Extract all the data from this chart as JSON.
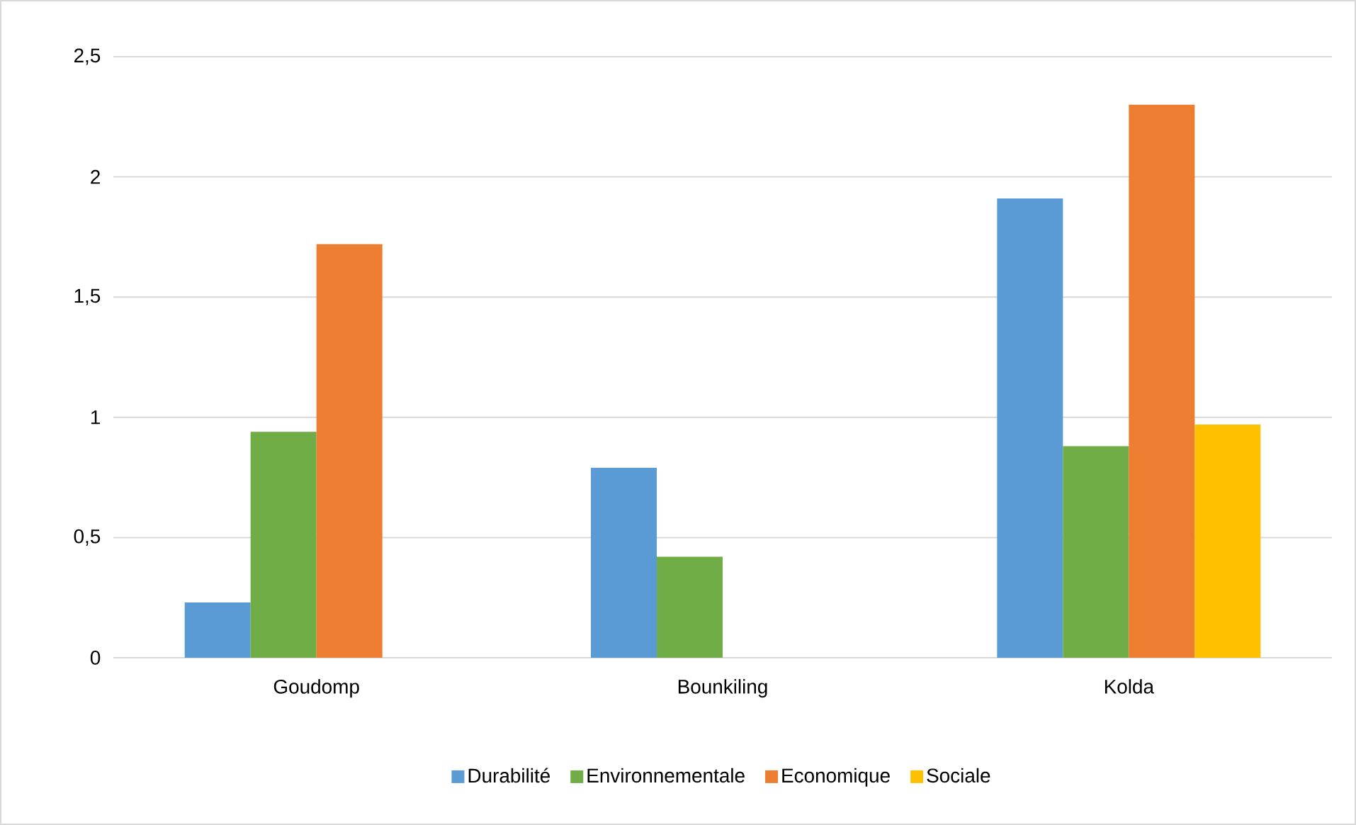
{
  "chart_data": {
    "type": "bar",
    "categories": [
      "Goudomp",
      "Bounkiling",
      "Kolda"
    ],
    "series": [
      {
        "name": "Durabilité",
        "color": "#5b9bd5",
        "values": [
          0.23,
          0.79,
          1.91
        ]
      },
      {
        "name": "Environnementale",
        "color": "#70ad47",
        "values": [
          0.94,
          0.42,
          0.88
        ]
      },
      {
        "name": "Economique",
        "color": "#ed7d31",
        "values": [
          1.72,
          null,
          2.3
        ]
      },
      {
        "name": "Sociale",
        "color": "#ffc000",
        "values": [
          null,
          null,
          0.97
        ]
      }
    ],
    "ylim": [
      0,
      2.5
    ],
    "yticks": [
      0,
      {
        "value": 0.5,
        "label": "0,5"
      },
      1,
      {
        "value": 1.5,
        "label": "1,5"
      },
      2,
      {
        "value": 2.5,
        "label": "2,5"
      }
    ],
    "grid": "y",
    "legend": "bottom"
  }
}
